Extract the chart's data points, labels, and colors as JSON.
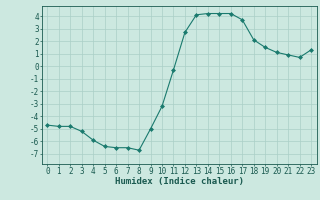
{
  "x": [
    0,
    1,
    2,
    3,
    4,
    5,
    6,
    7,
    8,
    9,
    10,
    11,
    12,
    13,
    14,
    15,
    16,
    17,
    18,
    19,
    20,
    21,
    22,
    23
  ],
  "y": [
    -4.7,
    -4.8,
    -4.8,
    -5.2,
    -5.9,
    -6.4,
    -6.5,
    -6.5,
    -6.7,
    -5.0,
    -3.2,
    -0.3,
    2.7,
    4.1,
    4.2,
    4.2,
    4.2,
    3.7,
    2.1,
    1.5,
    1.1,
    0.9,
    0.7,
    1.3
  ],
  "line_color": "#1a7a6e",
  "marker": "D",
  "marker_size": 2.0,
  "bg_color": "#cce8e0",
  "grid_color": "#aacfc7",
  "xlabel": "Humidex (Indice chaleur)",
  "ylim": [
    -7.8,
    4.8
  ],
  "xlim": [
    -0.5,
    23.5
  ],
  "yticks": [
    -7,
    -6,
    -5,
    -4,
    -3,
    -2,
    -1,
    0,
    1,
    2,
    3,
    4
  ],
  "xticks": [
    0,
    1,
    2,
    3,
    4,
    5,
    6,
    7,
    8,
    9,
    10,
    11,
    12,
    13,
    14,
    15,
    16,
    17,
    18,
    19,
    20,
    21,
    22,
    23
  ],
  "tick_color": "#1a5a50",
  "axis_color": "#1a5a50",
  "label_fontsize": 6.0,
  "tick_fontsize": 5.5,
  "xlabel_fontsize": 6.5
}
